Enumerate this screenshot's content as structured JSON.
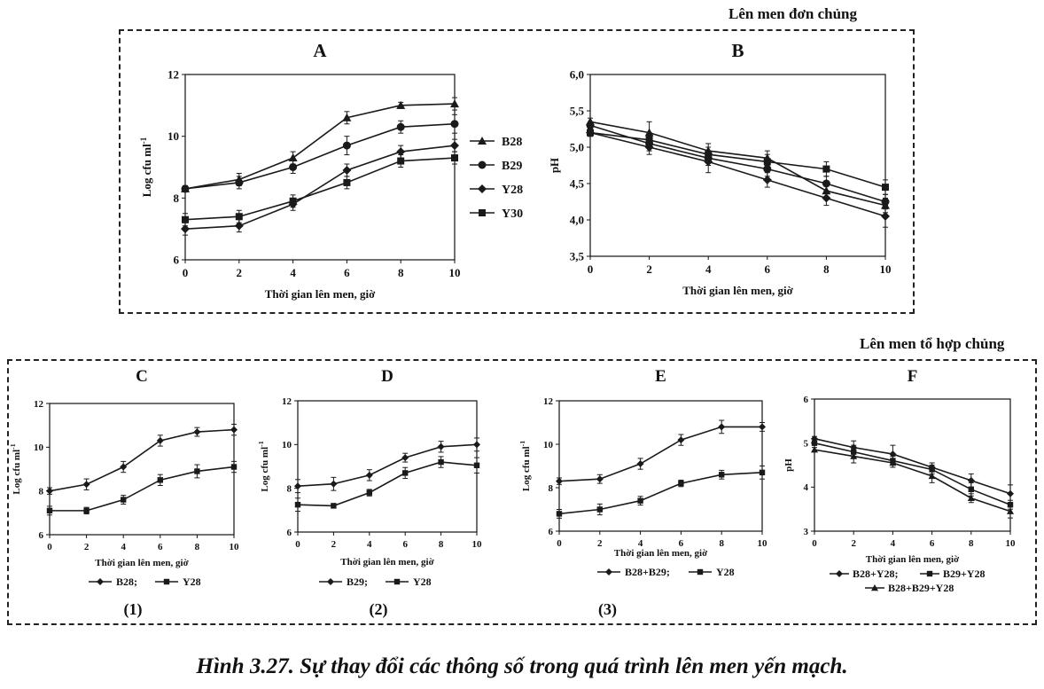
{
  "header_single": "Lên men đơn chủng",
  "header_combined": "Lên men tổ hợp chủng",
  "figure_caption": "Hình 3.27. Sự thay đổi các thông số trong quá trình lên men yến mạch.",
  "colors": {
    "line": "#1a1a1a",
    "axis": "#111111",
    "border": "#222222"
  },
  "chart_data": [
    {
      "id": "A",
      "type": "line",
      "title": "A",
      "xlabel": "Thời gian lên men, giờ",
      "ylabel": "Log cfu ml",
      "ylabel_sup": "-1",
      "x": [
        0,
        2,
        4,
        6,
        8,
        10
      ],
      "xlim": [
        0,
        10
      ],
      "ylim": [
        6,
        12
      ],
      "yticks": [
        6,
        8,
        10,
        12
      ],
      "ytick_labels": [
        "6",
        "8",
        "10",
        "12"
      ],
      "xticks": [
        0,
        2,
        4,
        6,
        8,
        10
      ],
      "legend_position": "right",
      "series": [
        {
          "name": "B28",
          "marker": "triangle",
          "values": [
            8.3,
            8.6,
            9.3,
            10.6,
            11.0,
            11.05
          ],
          "err": [
            0.1,
            0.2,
            0.2,
            0.2,
            0.1,
            0.2
          ]
        },
        {
          "name": "B29",
          "marker": "circle",
          "values": [
            8.3,
            8.5,
            9.0,
            9.7,
            10.3,
            10.4
          ],
          "err": [
            0.1,
            0.2,
            0.2,
            0.3,
            0.2,
            0.3
          ]
        },
        {
          "name": "Y28",
          "marker": "diamond",
          "values": [
            7.0,
            7.1,
            7.8,
            8.9,
            9.5,
            9.7
          ],
          "err": [
            0.2,
            0.2,
            0.2,
            0.2,
            0.2,
            0.2
          ]
        },
        {
          "name": "Y30",
          "marker": "square",
          "values": [
            7.3,
            7.4,
            7.9,
            8.5,
            9.2,
            9.3
          ],
          "err": [
            0.2,
            0.2,
            0.2,
            0.2,
            0.2,
            0.2
          ]
        }
      ]
    },
    {
      "id": "B",
      "type": "line",
      "title": "B",
      "xlabel": "Thời gian lên men, giờ",
      "ylabel": "pH",
      "x": [
        0,
        2,
        4,
        6,
        8,
        10
      ],
      "xlim": [
        0,
        10
      ],
      "ylim": [
        3.5,
        6.0
      ],
      "yticks": [
        3.5,
        4.0,
        4.5,
        5.0,
        5.5,
        6.0
      ],
      "ytick_labels": [
        "3,5",
        "4,0",
        "4,5",
        "5,0",
        "5,5",
        "6,0"
      ],
      "xticks": [
        0,
        2,
        4,
        6,
        8,
        10
      ],
      "series": [
        {
          "name": "B28",
          "marker": "triangle",
          "values": [
            5.35,
            5.2,
            4.95,
            4.85,
            4.4,
            4.2
          ],
          "err": [
            0.05,
            0.15,
            0.1,
            0.1,
            0.1,
            0.1
          ]
        },
        {
          "name": "B29",
          "marker": "circle",
          "values": [
            5.3,
            5.05,
            4.85,
            4.7,
            4.5,
            4.25
          ],
          "err": [
            0.05,
            0.1,
            0.1,
            0.1,
            0.1,
            0.1
          ]
        },
        {
          "name": "Y28",
          "marker": "diamond",
          "values": [
            5.2,
            5.0,
            4.8,
            4.55,
            4.3,
            4.05
          ],
          "err": [
            0.05,
            0.1,
            0.15,
            0.1,
            0.1,
            0.15
          ]
        },
        {
          "name": "Y30",
          "marker": "square",
          "values": [
            5.2,
            5.1,
            4.9,
            4.8,
            4.7,
            4.45
          ],
          "err": [
            0.05,
            0.1,
            0.1,
            0.1,
            0.1,
            0.1
          ]
        }
      ]
    },
    {
      "id": "C",
      "type": "line",
      "title": "C",
      "sublabel": "(1)",
      "xlabel": "Thời gian lên men, giờ",
      "ylabel": "Log cfu ml",
      "ylabel_sup": "-1",
      "x": [
        0,
        2,
        4,
        6,
        8,
        10
      ],
      "xlim": [
        0,
        10
      ],
      "ylim": [
        6,
        12
      ],
      "yticks": [
        6,
        8,
        10,
        12
      ],
      "ytick_labels": [
        "6",
        "8",
        "10",
        "12"
      ],
      "xticks": [
        0,
        2,
        4,
        6,
        8,
        10
      ],
      "legend_text": "B28;  Y28",
      "series": [
        {
          "name": "B28",
          "marker": "diamond",
          "values": [
            8.0,
            8.3,
            9.1,
            10.3,
            10.7,
            10.8
          ],
          "err": [
            0.15,
            0.25,
            0.25,
            0.25,
            0.2,
            0.25
          ]
        },
        {
          "name": "Y28",
          "marker": "square",
          "values": [
            7.1,
            7.1,
            7.6,
            8.5,
            8.9,
            9.1
          ],
          "err": [
            0.2,
            0.15,
            0.2,
            0.25,
            0.3,
            0.25
          ]
        }
      ]
    },
    {
      "id": "D",
      "type": "line",
      "title": "D",
      "sublabel": "(2)",
      "xlabel": "Thời gian lên men, giờ",
      "ylabel": "Log cfu ml",
      "ylabel_sup": "-1",
      "x": [
        0,
        2,
        4,
        6,
        8,
        10
      ],
      "xlim": [
        0,
        10
      ],
      "ylim": [
        6,
        12
      ],
      "yticks": [
        6,
        8,
        10,
        12
      ],
      "ytick_labels": [
        "6",
        "8",
        "10",
        "12"
      ],
      "xticks": [
        0,
        2,
        4,
        6,
        8,
        10
      ],
      "legend_text": "B29;  Y28",
      "series": [
        {
          "name": "B29",
          "marker": "diamond",
          "values": [
            8.1,
            8.2,
            8.6,
            9.4,
            9.9,
            10.0
          ],
          "err": [
            0.3,
            0.3,
            0.25,
            0.2,
            0.25,
            0.3
          ]
        },
        {
          "name": "Y28",
          "marker": "square",
          "values": [
            7.25,
            7.2,
            7.8,
            8.7,
            9.2,
            9.05
          ],
          "err": [
            0.3,
            0.1,
            0.15,
            0.25,
            0.25,
            0.35
          ]
        }
      ]
    },
    {
      "id": "E",
      "type": "line",
      "title": "E",
      "sublabel": "(3)",
      "xlabel": "Thời gian lên men, giờ",
      "ylabel": "Log cfu ml",
      "ylabel_sup": "-1",
      "x": [
        0,
        2,
        4,
        6,
        8,
        10
      ],
      "xlim": [
        0,
        10
      ],
      "ylim": [
        6,
        12
      ],
      "yticks": [
        6,
        8,
        10,
        12
      ],
      "ytick_labels": [
        "6",
        "8",
        "10",
        "12"
      ],
      "xticks": [
        0,
        2,
        4,
        6,
        8,
        10
      ],
      "legend_text": "B28+B29;  Y28",
      "series": [
        {
          "name": "B28+B29",
          "marker": "diamond",
          "values": [
            8.3,
            8.4,
            9.1,
            10.2,
            10.8,
            10.8
          ],
          "err": [
            0.15,
            0.2,
            0.25,
            0.25,
            0.3,
            0.2
          ]
        },
        {
          "name": "Y28",
          "marker": "square",
          "values": [
            6.8,
            7.0,
            7.4,
            8.2,
            8.6,
            8.7
          ],
          "err": [
            0.2,
            0.25,
            0.2,
            0.15,
            0.2,
            0.3
          ]
        }
      ]
    },
    {
      "id": "F",
      "type": "line",
      "title": "F",
      "xlabel": "Thời gian lên men, giờ",
      "ylabel": "pH",
      "x": [
        0,
        2,
        4,
        6,
        8,
        10
      ],
      "xlim": [
        0,
        10
      ],
      "ylim": [
        3,
        6
      ],
      "yticks": [
        3,
        4,
        5,
        6
      ],
      "ytick_labels": [
        "3",
        "4",
        "5",
        "6"
      ],
      "xticks": [
        0,
        2,
        4,
        6,
        8,
        10
      ],
      "legend_line1": "B28+Y28;  B29+Y28",
      "legend_line2": "B28+B29+Y28",
      "series": [
        {
          "name": "B28+Y28",
          "marker": "diamond",
          "values": [
            5.1,
            4.9,
            4.75,
            4.45,
            4.15,
            3.85
          ],
          "err": [
            0.05,
            0.15,
            0.2,
            0.1,
            0.15,
            0.2
          ]
        },
        {
          "name": "B29+Y28",
          "marker": "square",
          "values": [
            5.0,
            4.8,
            4.6,
            4.4,
            3.95,
            3.6
          ],
          "err": [
            0.05,
            0.15,
            0.1,
            0.1,
            0.15,
            0.1
          ]
        },
        {
          "name": "B28+B29+Y28",
          "marker": "triangle",
          "values": [
            4.85,
            4.7,
            4.55,
            4.25,
            3.75,
            3.45
          ],
          "err": [
            0.05,
            0.15,
            0.1,
            0.15,
            0.1,
            0.15
          ]
        }
      ]
    }
  ]
}
